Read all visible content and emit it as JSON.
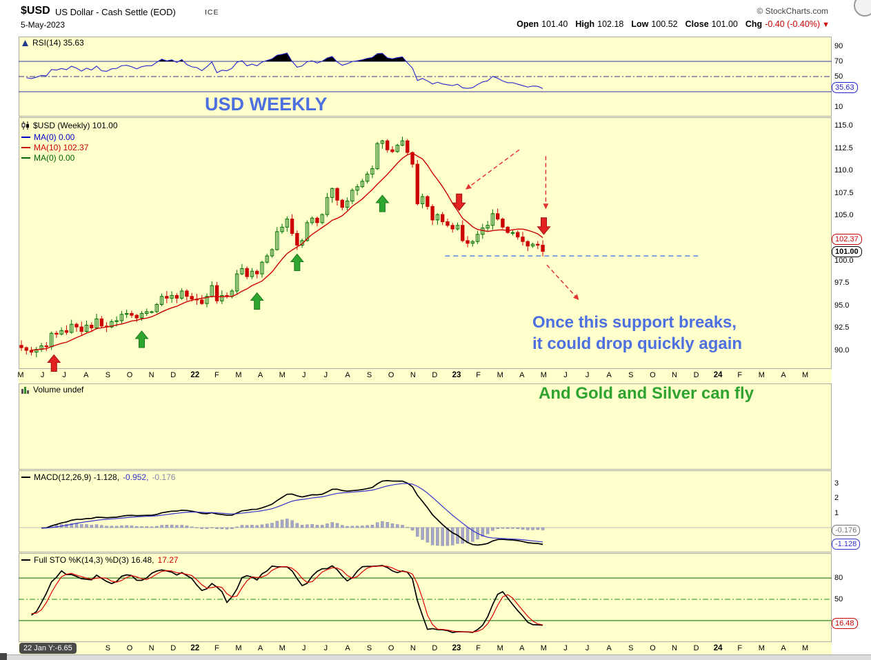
{
  "header": {
    "symbol": "$USD",
    "title": "US Dollar - Cash Settle (EOD)",
    "exchange": "ICE",
    "brand": "© StockCharts.com",
    "date": "5-May-2023",
    "quote": {
      "items": [
        {
          "label": "Open",
          "value": "101.40"
        },
        {
          "label": "High",
          "value": "102.18"
        },
        {
          "label": "Low",
          "value": "100.52"
        },
        {
          "label": "Close",
          "value": "101.00"
        }
      ],
      "chg_label": "Chg",
      "chg_value": "-0.40 (-0.40%)",
      "chg_arrow": "▼"
    }
  },
  "panels": {
    "rsi": {
      "legend": "RSI(14) 35.63",
      "axis": [
        "90",
        "70",
        "50",
        "10"
      ],
      "bubbles": [
        {
          "text": "35.63",
          "color": "#2222CC"
        }
      ]
    },
    "price": {
      "legend": "$USD (Weekly) 101.00",
      "ma": [
        {
          "label": "MA(0) 0.00",
          "color": "#0000CC"
        },
        {
          "label": "MA(10) 102.37",
          "color": "#CC0000"
        },
        {
          "label": "MA(0) 0.00",
          "color": "#006600"
        }
      ],
      "axis": [
        "115.0",
        "112.5",
        "110.0",
        "107.5",
        "105.0",
        "100.0",
        "97.5",
        "95.0",
        "92.5",
        "90.0"
      ],
      "bubbles": [
        {
          "text": "102.37",
          "color": "#CC0000"
        },
        {
          "text": "101.00",
          "color": "#000000",
          "bold": true
        }
      ]
    },
    "volume": {
      "legend": "Volume undef"
    },
    "macd": {
      "parts": [
        {
          "text": "MACD(12,26,9) -1.128,",
          "color": "#000000"
        },
        {
          "text": "-0.952,",
          "color": "#3333CC"
        },
        {
          "text": "-0.176",
          "color": "#8888AA"
        }
      ],
      "axis": [
        "3",
        "2",
        "1"
      ],
      "bubbles": [
        {
          "text": "-0.176",
          "color": "#777777"
        },
        {
          "text": "-1.128",
          "color": "#3333CC"
        }
      ]
    },
    "sto": {
      "parts": [
        {
          "text": "Full STO %K(14,3) %D(3) 16.48,",
          "color": "#000000"
        },
        {
          "text": "17.27",
          "color": "#CC0000"
        }
      ],
      "axis": [
        "80",
        "50"
      ],
      "bubbles": [
        {
          "text": "16.48",
          "color": "#CC0000"
        }
      ]
    }
  },
  "annotations": {
    "usd_weekly": "USD WEEKLY",
    "support_text_1": "Once this support breaks,",
    "support_text_2": "it could drop quickly again",
    "gold_text": "And Gold and Silver can fly",
    "green_up_arrows": [
      {
        "week": 24,
        "value": 92.15
      },
      {
        "week": 47,
        "value": 96.4
      },
      {
        "week": 55,
        "value": 100.7
      },
      {
        "week": 72,
        "value": 107.25
      }
    ],
    "red_up_arrows": [
      {
        "week": 6.5,
        "value": 89.5
      }
    ],
    "red_down_arrows": [
      {
        "week": 87.3,
        "value": 105.55
      },
      {
        "week": 104.2,
        "value": 102.9
      }
    ],
    "dashed_arrows": [
      {
        "w1": 99.3,
        "v1": 112.3,
        "w2": 88.6,
        "v2": 107.9
      },
      {
        "w1": 104.6,
        "v1": 111.6,
        "w2": 104.6,
        "v2": 105.7
      },
      {
        "w1": 104.8,
        "v1": 99.5,
        "w2": 111.2,
        "v2": 95.6
      }
    ],
    "support_line": {
      "value": 100.5,
      "from_week": 84.5,
      "to_week": 135.5
    }
  },
  "months_top": [
    "M",
    "J",
    "J",
    "A",
    "S",
    "O",
    "N",
    "D",
    "22",
    "F",
    "M",
    "A",
    "M",
    "J",
    "J",
    "A",
    "S",
    "O",
    "N",
    "D",
    "23",
    "F",
    "M",
    "A",
    "M",
    "J",
    "J",
    "A",
    "S",
    "O",
    "N",
    "D",
    "24",
    "F",
    "M",
    "A",
    "M"
  ],
  "months_bottom": [
    "S",
    "O",
    "N",
    "D",
    "22",
    "F",
    "M",
    "A",
    "M",
    "J",
    "J",
    "A",
    "S",
    "O",
    "N",
    "D",
    "23",
    "F",
    "M",
    "A",
    "M",
    "J",
    "J",
    "A",
    "S",
    "O",
    "N",
    "D",
    "24",
    "F",
    "M",
    "A",
    "M"
  ],
  "footer": {
    "readout": "22 Jan Y:-6.65"
  },
  "colors": {
    "panel_bg": "#FFFFCC",
    "candle_up": "#007000",
    "candle_down": "#CC0000",
    "ma10": "#CC0000",
    "rsi_line": "#2222CC",
    "rsi_ref": "#3333AA",
    "macd_line": "#000000",
    "macd_signal": "#3333CC",
    "macd_hist": "#A6A6C6",
    "sto_k": "#000000",
    "sto_d": "#DD0000",
    "sto_ref": "#006600",
    "support_line": "#5588EE",
    "arrow_green": "#2EA52E",
    "arrow_red": "#E32222",
    "annotation_blue": "#4D6FE0",
    "annotation_green": "#2FA32F"
  },
  "chart_data": [
    {
      "type": "line",
      "panel": "rsi",
      "name": "RSI(14)",
      "current": 35.63,
      "ref_lines": [
        70,
        50,
        30
      ],
      "ylim": [
        0,
        100
      ],
      "series_note": "RSI(14) computed from price weekly_close series below"
    },
    {
      "type": "candlestick",
      "panel": "price",
      "name": "$USD US Dollar Weekly",
      "interval": "weekly",
      "start": "May-2021",
      "end": "May-2023",
      "open": 101.4,
      "high": 102.18,
      "low": 100.52,
      "close": 101.0,
      "change": "-0.40 (-0.40%)",
      "ma10_last": 102.37,
      "support_level": 100.5,
      "ylim": [
        88.2,
        115.9
      ],
      "weekly_close": [
        90.3,
        90.0,
        89.8,
        90.1,
        90.5,
        90.4,
        91.9,
        91.8,
        92.2,
        92.0,
        92.9,
        92.6,
        92.1,
        92.8,
        92.5,
        93.5,
        92.7,
        92.6,
        93.2,
        93.3,
        94.0,
        94.1,
        93.9,
        93.6,
        94.1,
        94.3,
        94.3,
        95.1,
        96.0,
        95.8,
        96.1,
        95.8,
        96.6,
        96.0,
        95.7,
        95.6,
        95.2,
        96.0,
        97.2,
        95.5,
        96.1,
        96.0,
        96.6,
        98.5,
        99.1,
        98.2,
        98.8,
        98.5,
        99.8,
        100.5,
        101.2,
        103.2,
        103.7,
        104.6,
        103.0,
        101.7,
        102.2,
        104.2,
        104.7,
        104.2,
        105.1,
        107.0,
        108.0,
        106.7,
        105.9,
        106.6,
        107.8,
        108.2,
        108.8,
        109.6,
        110.2,
        113.0,
        113.3,
        112.3,
        112.1,
        112.8,
        113.3,
        112.0,
        110.7,
        106.3,
        107.1,
        106.0,
        104.5,
        105.1,
        104.3,
        103.9,
        103.5,
        103.9,
        102.2,
        101.9,
        102.1,
        102.9,
        103.6,
        103.9,
        105.2,
        104.6,
        103.7,
        103.1,
        103.1,
        102.6,
        102.1,
        101.6,
        101.8,
        101.7,
        101.0
      ]
    },
    {
      "type": "bar",
      "panel": "volume",
      "name": "Volume",
      "value": "undef",
      "values": []
    },
    {
      "type": "line",
      "panel": "macd",
      "name": "MACD(12,26,9)",
      "macd": -1.128,
      "signal": -0.952,
      "histogram": -0.176,
      "axis_ticks": [
        3,
        2,
        1
      ],
      "series_note": "MACD computed from price weekly_close series"
    },
    {
      "type": "line",
      "panel": "sto",
      "name": "Full STO %K(14,3) %D(3)",
      "k": 16.48,
      "d": 17.27,
      "ref_lines": [
        80,
        50,
        20
      ],
      "ylim": [
        0,
        100
      ],
      "series_note": "Full stochastic computed from price weekly_close series"
    }
  ]
}
